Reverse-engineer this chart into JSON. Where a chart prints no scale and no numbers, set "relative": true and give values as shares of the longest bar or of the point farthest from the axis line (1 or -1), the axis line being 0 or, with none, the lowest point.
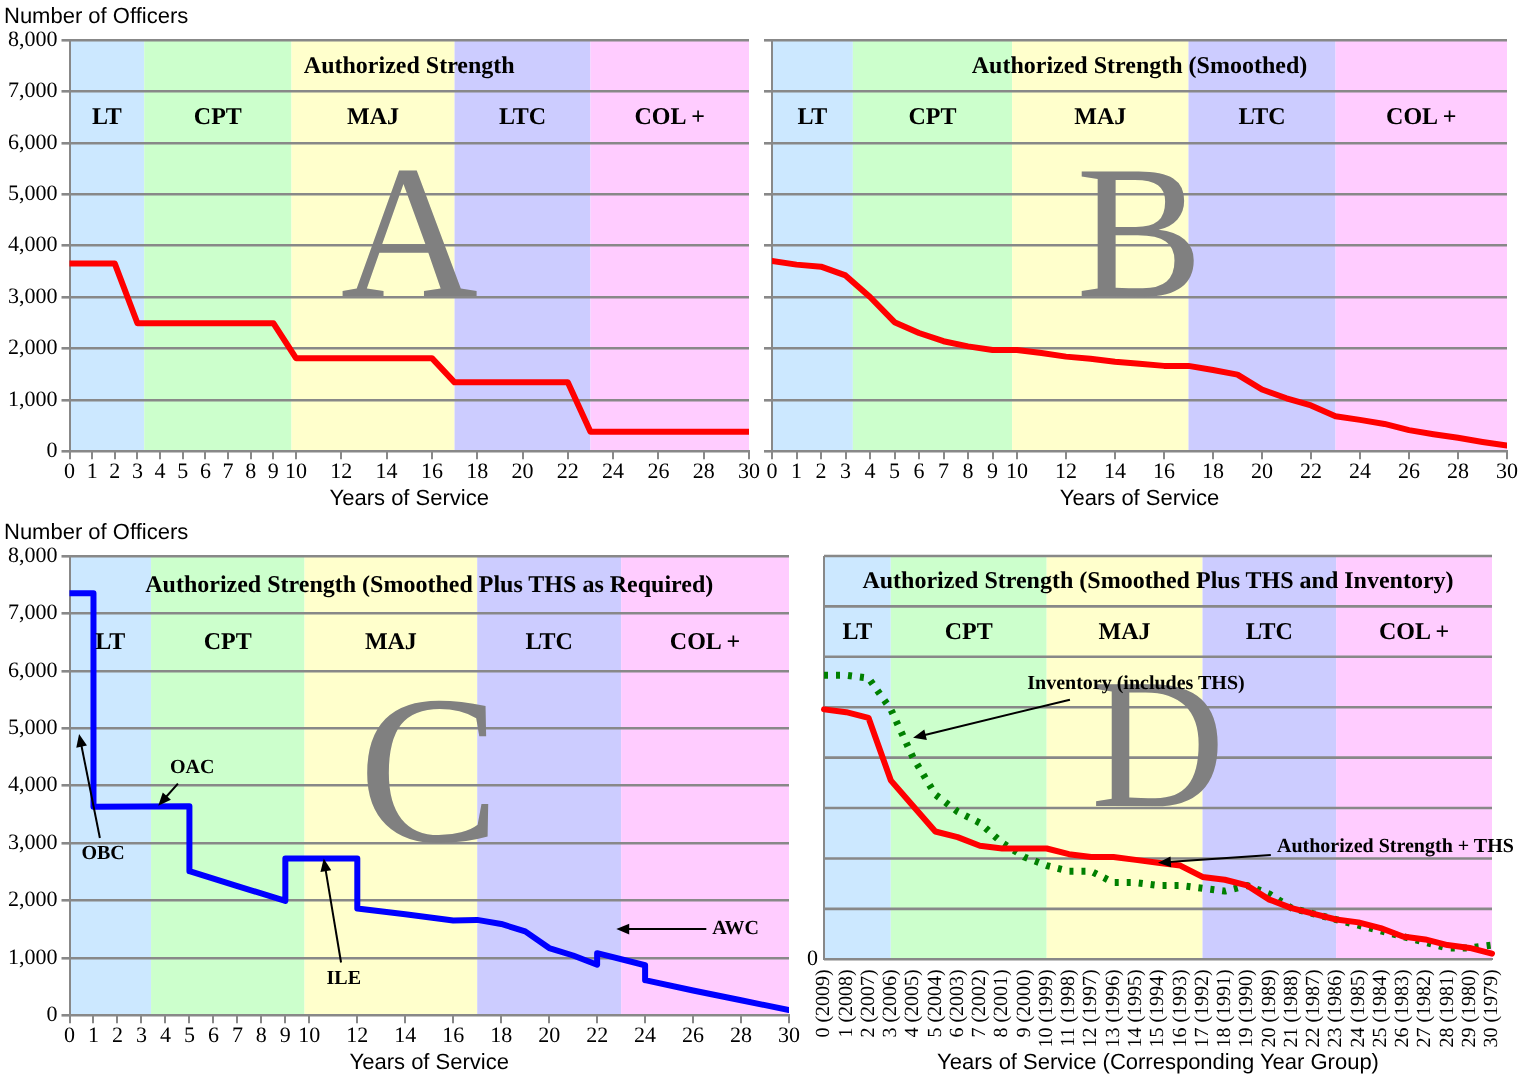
{
  "chart_data": [
    {
      "type": "line",
      "title": "Authorized Strength",
      "ylabel": "Number of Officers",
      "xlabel": "Years of Service",
      "series": [
        {
          "color": "#ff0000",
          "x": [
            0,
            2,
            3,
            9,
            10,
            16,
            17,
            22,
            23,
            30
          ],
          "values": [
            3650,
            3650,
            2490,
            2490,
            1810,
            1810,
            1340,
            1340,
            380,
            380
          ]
        }
      ],
      "xlim": [
        0,
        30
      ],
      "xticks": [
        0,
        1,
        2,
        3,
        4,
        5,
        6,
        7,
        8,
        9,
        10,
        12,
        14,
        16,
        18,
        20,
        22,
        24,
        26,
        28,
        30
      ],
      "ylim": [
        0,
        8000
      ],
      "yticks": [
        0,
        {
          "value": 1000,
          "label": "1,000"
        },
        {
          "value": 2000,
          "label": "2,000"
        },
        {
          "value": 3000,
          "label": "3,000"
        },
        {
          "value": 4000,
          "label": "4,000"
        },
        {
          "value": 5000,
          "label": "5,000"
        },
        {
          "value": 6000,
          "label": "6,000"
        },
        {
          "value": 7000,
          "label": "7,000"
        },
        {
          "value": 8000,
          "label": "8,000"
        }
      ],
      "bands": [
        {
          "axis": "x",
          "from": 0,
          "to": 3.3,
          "label": "LT",
          "color": "#cce8ff"
        },
        {
          "axis": "x",
          "from": 3.3,
          "to": 9.8,
          "label": "CPT",
          "color": "#ccffcc"
        },
        {
          "axis": "x",
          "from": 9.8,
          "to": 17,
          "label": "MAJ",
          "color": "#ffffcc"
        },
        {
          "axis": "x",
          "from": 17,
          "to": 23,
          "label": "LTC",
          "color": "#ccccff"
        },
        {
          "axis": "x",
          "from": 23,
          "to": 30,
          "label": "COL +",
          "color": "#ffccff"
        }
      ],
      "annotations": [
        "A"
      ],
      "grid": "y",
      "marker": "none",
      "line_style": "solid"
    },
    {
      "type": "line",
      "title": "Authorized Strength (Smoothed)",
      "xlabel": "Years of Service",
      "series": [
        {
          "color": "#ff0000",
          "x": [
            0,
            1,
            2,
            3,
            4,
            5,
            6,
            7,
            8,
            9,
            10,
            11,
            12,
            13,
            14,
            15,
            16,
            17,
            18,
            19,
            20,
            21,
            22,
            23,
            24,
            25,
            26,
            27,
            28,
            29,
            30
          ],
          "values": [
            3700,
            3630,
            3590,
            3420,
            3000,
            2510,
            2300,
            2140,
            2040,
            1970,
            1970,
            1910,
            1840,
            1800,
            1740,
            1700,
            1660,
            1660,
            1580,
            1490,
            1200,
            1030,
            890,
            680,
            610,
            530,
            410,
            330,
            260,
            180,
            110
          ]
        }
      ],
      "xlim": [
        0,
        30
      ],
      "xticks": [
        0,
        1,
        2,
        3,
        4,
        5,
        6,
        7,
        8,
        9,
        10,
        12,
        14,
        16,
        18,
        20,
        22,
        24,
        26,
        28,
        30
      ],
      "ylim": [
        0,
        8000
      ],
      "yticks": [
        0,
        1000,
        2000,
        3000,
        4000,
        5000,
        6000,
        7000,
        8000
      ],
      "tick_labels": "x",
      "bands": [
        {
          "axis": "x",
          "from": 0,
          "to": 3.3,
          "label": "LT",
          "color": "#cce8ff"
        },
        {
          "axis": "x",
          "from": 3.3,
          "to": 9.8,
          "label": "CPT",
          "color": "#ccffcc"
        },
        {
          "axis": "x",
          "from": 9.8,
          "to": 17,
          "label": "MAJ",
          "color": "#ffffcc"
        },
        {
          "axis": "x",
          "from": 17,
          "to": 23,
          "label": "LTC",
          "color": "#ccccff"
        },
        {
          "axis": "x",
          "from": 23,
          "to": 30,
          "label": "COL +",
          "color": "#ffccff"
        }
      ],
      "annotations": [
        "B"
      ],
      "grid": "y",
      "marker": "none",
      "line_style": "solid"
    },
    {
      "type": "line",
      "title": "Authorized Strength (Smoothed Plus THS as Required)",
      "ylabel": "Number of Officers",
      "xlabel": "Years of Service",
      "series": [
        {
          "color": "#0000ff",
          "x": [
            0,
            1,
            1,
            5,
            5,
            7,
            9,
            9,
            12,
            12,
            14,
            16,
            17,
            18,
            19,
            20,
            21,
            22,
            22,
            24,
            24,
            26,
            28,
            30
          ],
          "values": [
            7350,
            7350,
            3630,
            3640,
            2510,
            2250,
            1990,
            2730,
            2730,
            1860,
            1760,
            1650,
            1660,
            1590,
            1460,
            1170,
            1040,
            880,
            1080,
            870,
            610,
            430,
            260,
            90
          ]
        }
      ],
      "xlim": [
        0,
        30
      ],
      "xticks": [
        0,
        1,
        2,
        3,
        4,
        5,
        6,
        7,
        8,
        9,
        10,
        12,
        14,
        16,
        18,
        20,
        22,
        24,
        26,
        28,
        30
      ],
      "ylim": [
        0,
        8000
      ],
      "yticks": [
        0,
        {
          "value": 1000,
          "label": "1,000"
        },
        {
          "value": 2000,
          "label": "2,000"
        },
        {
          "value": 3000,
          "label": "3,000"
        },
        {
          "value": 4000,
          "label": "4,000"
        },
        {
          "value": 5000,
          "label": "5,000"
        },
        {
          "value": 6000,
          "label": "6,000"
        },
        {
          "value": 7000,
          "label": "7,000"
        },
        {
          "value": 8000,
          "label": "8,000"
        }
      ],
      "bands": [
        {
          "axis": "x",
          "from": 0,
          "to": 3.4,
          "label": "LT",
          "color": "#cce8ff"
        },
        {
          "axis": "x",
          "from": 3.4,
          "to": 9.8,
          "label": "CPT",
          "color": "#ccffcc"
        },
        {
          "axis": "x",
          "from": 9.8,
          "to": 17,
          "label": "MAJ",
          "color": "#ffffcc"
        },
        {
          "axis": "x",
          "from": 17,
          "to": 23,
          "label": "LTC",
          "color": "#ccccff"
        },
        {
          "axis": "x",
          "from": 23,
          "to": 30,
          "label": "COL +",
          "color": "#ffccff"
        }
      ],
      "annotations": [
        "C",
        {
          "text": "OBC",
          "x": 0.4,
          "y": 4900
        },
        {
          "text": "OAC",
          "x": 3.7,
          "y": 3650
        },
        {
          "text": "ILE",
          "x": 10.6,
          "y": 2730
        },
        {
          "text": "AWC",
          "x": 22.8,
          "y": 1500
        }
      ],
      "grid": "y",
      "marker": "none",
      "line_style": "solid"
    },
    {
      "type": "line",
      "title": "Authorized Strength (Smoothed Plus THS and Inventory)",
      "xlabel": "Years of Service (Corresponding Year Group)",
      "categories": [
        "0 (2009)",
        "1 (2008)",
        "2 (2007)",
        "3 (2006)",
        "4 (2005)",
        "5 (2004)",
        "6 (2003)",
        "7 (2002)",
        "8 (2001)",
        "9 (2000)",
        "10 (1999)",
        "11 (1998)",
        "12 (1997)",
        "13 (1996)",
        "14 (1995)",
        "15 (1994)",
        "16 (1993)",
        "17 (1992)",
        "18 (1991)",
        "19 (1990)",
        "20 (1989)",
        "21 (1988)",
        "22 (1987)",
        "23 (1986)",
        "24 (1985)",
        "25 (1984)",
        "26 (1983)",
        "27 (1982)",
        "28 (1981)",
        "29 (1980)",
        "30 (1979)"
      ],
      "series": [
        {
          "color": "#ff0000",
          "line_style": "solid",
          "values": [
            0.88,
            0.87,
            0.85,
            0.63,
            0.54,
            0.45,
            0.43,
            0.4,
            0.39,
            0.39,
            0.39,
            0.37,
            0.36,
            0.36,
            0.35,
            0.34,
            0.33,
            0.29,
            0.28,
            0.26,
            0.21,
            0.18,
            0.16,
            0.14,
            0.13,
            0.11,
            0.08,
            0.07,
            0.05,
            0.04,
            0.02
          ]
        },
        {
          "color": "#008000",
          "line_style": "dotted",
          "values": [
            1,
            1,
            0.99,
            0.88,
            0.71,
            0.58,
            0.52,
            0.48,
            0.41,
            0.36,
            0.33,
            0.31,
            0.31,
            0.27,
            0.27,
            0.26,
            0.26,
            0.25,
            0.24,
            0.26,
            0.23,
            0.18,
            0.16,
            0.14,
            0.12,
            0.1,
            0.08,
            0.06,
            0.04,
            0.04,
            0.05
          ]
        }
      ],
      "relative": true,
      "bands": [
        {
          "axis": "x",
          "from": "0 (2009)",
          "to": "3 (2006)",
          "label": "LT",
          "color": "#cce8ff"
        },
        {
          "axis": "x",
          "from": "3 (2006)",
          "to": "10 (1999)",
          "label": "CPT",
          "color": "#ccffcc"
        },
        {
          "axis": "x",
          "from": "10 (1999)",
          "to": "17 (1992)",
          "label": "MAJ",
          "color": "#ffffcc"
        },
        {
          "axis": "x",
          "from": "17 (1992)",
          "to": "23 (1986)",
          "label": "LTC",
          "color": "#ccccff"
        },
        {
          "axis": "x",
          "from": "23 (1986)",
          "to": "30 (1979)",
          "label": "COL +",
          "color": "#ffccff"
        }
      ],
      "annotations": [
        "D",
        "0",
        {
          "text": "Inventory (includes THS)",
          "x": "4 (2005)",
          "y": 0.78
        },
        {
          "text": "Authorized Strength + THS",
          "x": "15 (1994)",
          "y": 0.34
        }
      ],
      "grid": "y",
      "marker": "none"
    }
  ]
}
